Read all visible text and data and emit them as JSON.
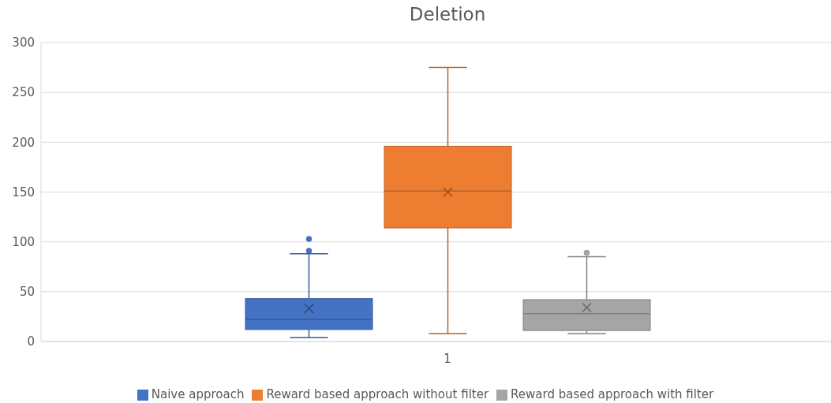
{
  "chart_data": {
    "type": "box",
    "title": "Deletion",
    "categories": [
      "1"
    ],
    "series": [
      {
        "name": "Naive approach",
        "color": "#4472c4",
        "boxes": [
          {
            "low": 4,
            "q1": 12,
            "median": 22,
            "q3": 43,
            "high": 88,
            "mean": 33,
            "outliers": [
              91,
              103
            ]
          }
        ]
      },
      {
        "name": "Reward based approach without filter",
        "color": "#ed7d31",
        "boxes": [
          {
            "low": 8,
            "q1": 114,
            "median": 151,
            "q3": 196,
            "high": 275,
            "mean": 150
          }
        ]
      },
      {
        "name": "Reward based approach with filter",
        "color": "#a5a5a5",
        "boxes": [
          {
            "low": 8,
            "q1": 11,
            "median": 28,
            "q3": 42,
            "high": 85,
            "mean": 34,
            "outliers": [
              89
            ]
          }
        ]
      }
    ],
    "ylim": [
      0,
      300
    ],
    "yticks": [
      0,
      50,
      100,
      150,
      200,
      250,
      300
    ],
    "grid": "y",
    "legend": "bottom"
  }
}
